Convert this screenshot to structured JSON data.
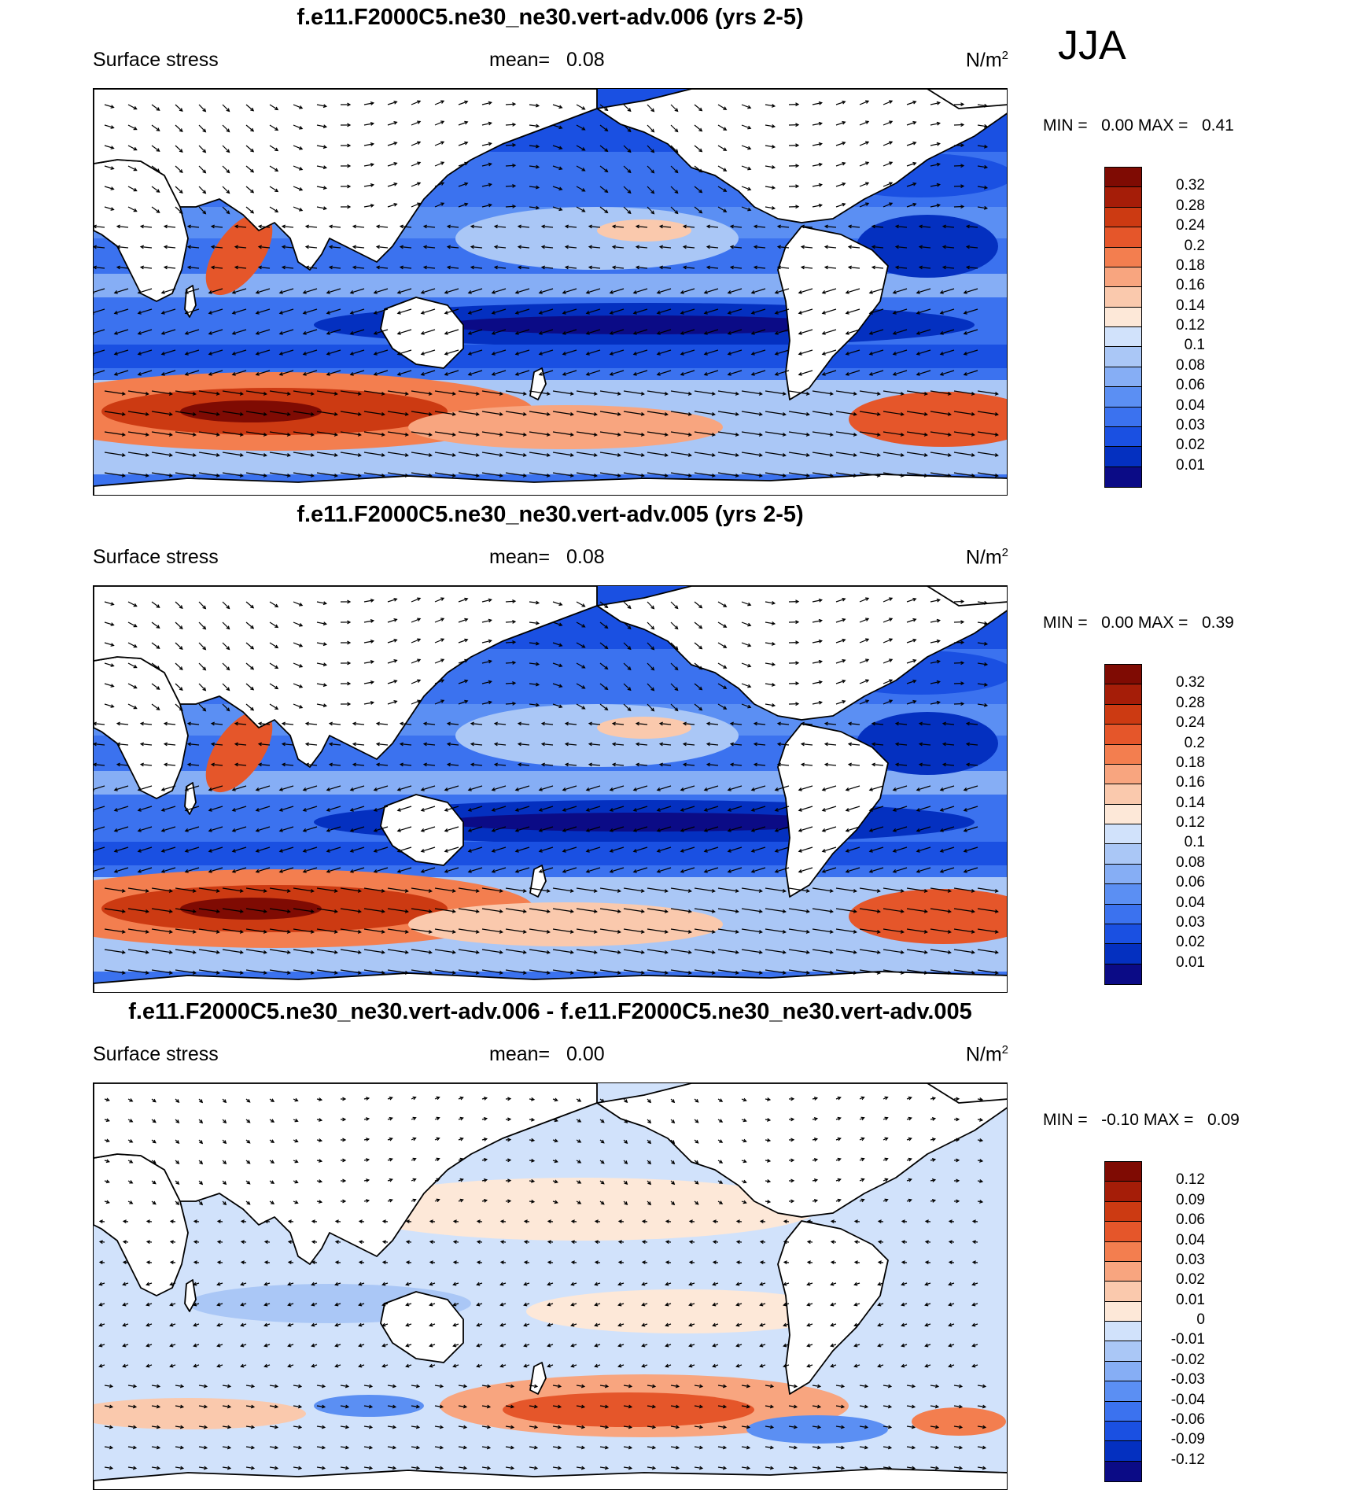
{
  "season": "JJA",
  "palette_main": [
    "#0b0b86",
    "#0430c0",
    "#1a50e2",
    "#3b72ef",
    "#5b8ff3",
    "#86aef5",
    "#aac7f6",
    "#d1e2fb",
    "#fde8d8",
    "#fac9ad",
    "#f8a57f",
    "#f37e4f",
    "#e5562a",
    "#cc3a12",
    "#a51d08",
    "#7f0b03"
  ],
  "panels": [
    {
      "title": "f.e11.F2000C5.ne30_ne30.vert-adv.006 (yrs 2-5)",
      "left_label": "Surface stress",
      "mean_label": "mean=",
      "mean_value": "0.08",
      "units": "N/m",
      "units_exp": "2",
      "min_label": "MIN =",
      "min_value": "0.00",
      "max_label": "MAX =",
      "max_value": "0.41",
      "levels": [
        "0.32",
        "0.28",
        "0.24",
        "0.2",
        "0.18",
        "0.16",
        "0.14",
        "0.12",
        "0.1",
        "0.08",
        "0.06",
        "0.04",
        "0.03",
        "0.02",
        "0.01"
      ],
      "kind": "mean"
    },
    {
      "title": "f.e11.F2000C5.ne30_ne30.vert-adv.005 (yrs 2-5)",
      "left_label": "Surface stress",
      "mean_label": "mean=",
      "mean_value": "0.08",
      "units": "N/m",
      "units_exp": "2",
      "min_label": "MIN =",
      "min_value": "0.00",
      "max_label": "MAX =",
      "max_value": "0.39",
      "levels": [
        "0.32",
        "0.28",
        "0.24",
        "0.2",
        "0.18",
        "0.16",
        "0.14",
        "0.12",
        "0.1",
        "0.08",
        "0.06",
        "0.04",
        "0.03",
        "0.02",
        "0.01"
      ],
      "kind": "mean"
    },
    {
      "title": "f.e11.F2000C5.ne30_ne30.vert-adv.006 - f.e11.F2000C5.ne30_ne30.vert-adv.005",
      "left_label": "Surface stress",
      "mean_label": "mean=",
      "mean_value": "0.00",
      "units": "N/m",
      "units_exp": "2",
      "min_label": "MIN =",
      "min_value": "-0.10",
      "max_label": "MAX =",
      "max_value": "0.09",
      "levels": [
        "0.12",
        "0.09",
        "0.06",
        "0.04",
        "0.03",
        "0.02",
        "0.01",
        "0",
        "-0.01",
        "-0.02",
        "-0.03",
        "-0.04",
        "-0.06",
        "-0.09",
        "-0.12"
      ],
      "kind": "diff"
    }
  ]
}
